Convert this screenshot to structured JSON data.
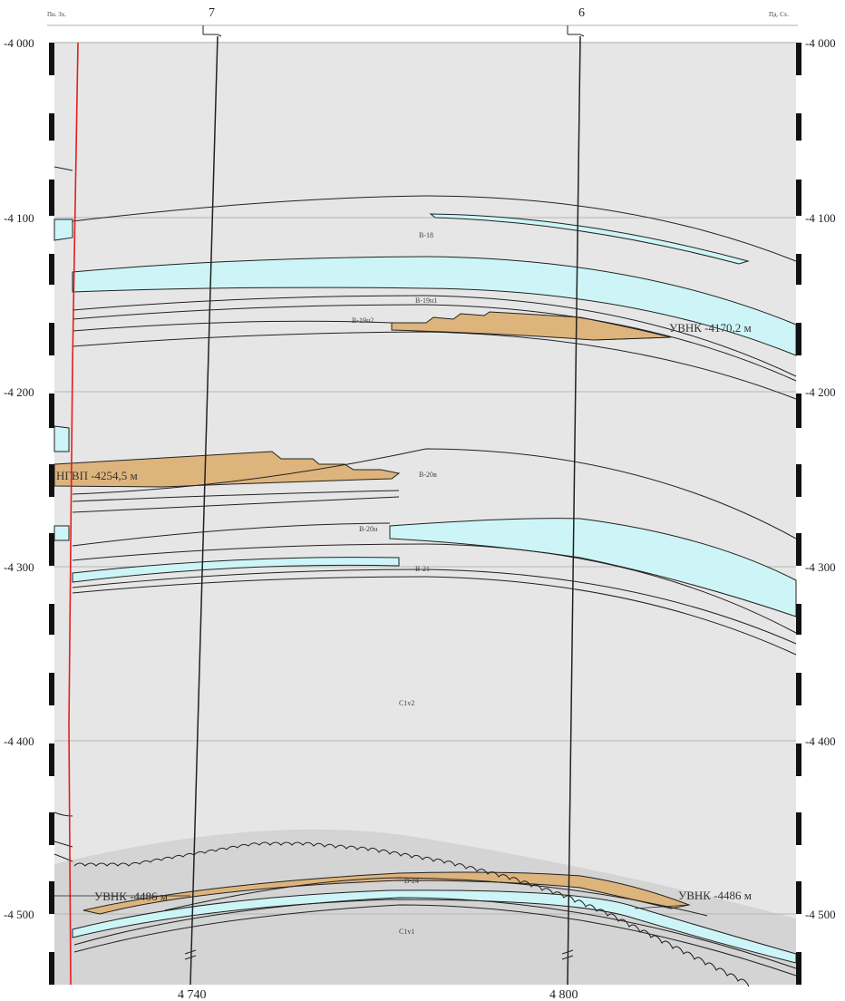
{
  "header": {
    "left_label": "Пн. Зх.",
    "right_label": "Пд. Сх."
  },
  "wells": [
    {
      "name": "7",
      "bottom_label": "4 740"
    },
    {
      "name": "6",
      "bottom_label": "4 800"
    }
  ],
  "depth_ticks": [
    "-4 000",
    "-4 100",
    "-4 200",
    "-4 300",
    "-4 400",
    "-4 500"
  ],
  "layers": {
    "b18": "В-18",
    "b19n1": "В-19н1",
    "b19n2": "В-19н2",
    "b20v": "В-20в",
    "b20n": "В-20н",
    "b21": "В-21",
    "c1v2": "С1v2",
    "b24": "В-24",
    "c1v1": "С1v1"
  },
  "contacts": {
    "vnk_upper": "УВНК -4170,2 м",
    "gvp": "НГВП -4254,5 м",
    "vnk_left": "УВНК -4486 м",
    "vnk_right": "УВНК -4486 м"
  },
  "colors": {
    "background": "#e6e6e6",
    "basement": "#d3d3d3",
    "water": "#cdf5f7",
    "oil": "#ddb47c",
    "fault": "#e31e1e",
    "line": "#222222",
    "gridline": "#b5b5b5"
  }
}
